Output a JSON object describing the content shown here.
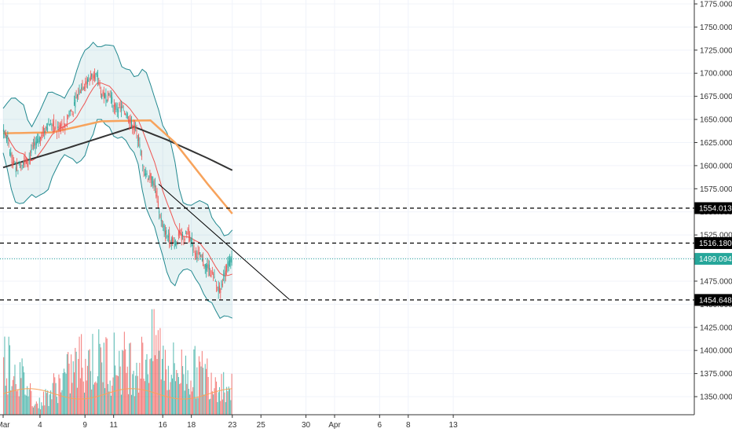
{
  "chart_data": {
    "type": "candlestick",
    "instrument_quote_unit": "price",
    "ylim": [
      1337,
      1780
    ],
    "y_ticks": [
      "1350.000",
      "1375.000",
      "1400.000",
      "1425.000",
      "1450.000",
      "1475.000",
      "1500.000",
      "1525.000",
      "1550.000",
      "1575.000",
      "1600.000",
      "1625.000",
      "1650.000",
      "1675.000",
      "1700.000",
      "1725.000",
      "1750.000",
      "1775.000"
    ],
    "x_ticks": [
      "Mar",
      "4",
      "9",
      "11",
      "16",
      "18",
      "23",
      "25",
      "30",
      "Apr",
      "6",
      "8",
      "13"
    ],
    "x_tick_index": [
      0,
      9,
      20,
      27,
      39,
      46,
      56,
      63,
      74,
      81,
      92,
      99,
      110
    ],
    "grid": true,
    "horizontal_levels": [
      {
        "value": 1554.013,
        "label": "1554.013",
        "style": "dashed",
        "color": "#000000"
      },
      {
        "value": 1516.18,
        "label": "1516.180",
        "style": "dashed",
        "color": "#000000"
      },
      {
        "value": 1454.648,
        "label": "1454.648",
        "style": "dashed",
        "color": "#000000"
      }
    ],
    "last_price": {
      "value": 1499.094,
      "label": "1499.094",
      "color": "#26a69a"
    },
    "trendline": {
      "from": {
        "index": 38,
        "value": 1580
      },
      "to": {
        "index": 70,
        "value": 1455
      }
    },
    "ohlc_keypoints": [
      {
        "i": 0,
        "close": 1638
      },
      {
        "i": 3,
        "close": 1600
      },
      {
        "i": 7,
        "close": 1612
      },
      {
        "i": 10,
        "close": 1642
      },
      {
        "i": 15,
        "close": 1645
      },
      {
        "i": 19,
        "close": 1685
      },
      {
        "i": 21,
        "close": 1700
      },
      {
        "i": 25,
        "close": 1675
      },
      {
        "i": 29,
        "close": 1660
      },
      {
        "i": 32,
        "close": 1645
      },
      {
        "i": 34,
        "close": 1600
      },
      {
        "i": 37,
        "close": 1580
      },
      {
        "i": 39,
        "close": 1530
      },
      {
        "i": 42,
        "close": 1520
      },
      {
        "i": 45,
        "close": 1525
      },
      {
        "i": 48,
        "close": 1500
      },
      {
        "i": 51,
        "close": 1480
      },
      {
        "i": 53,
        "close": 1470
      },
      {
        "i": 55,
        "close": 1500
      },
      {
        "i": 56,
        "close": 1499
      }
    ],
    "volume_keypoints": [
      {
        "i": 1,
        "v": 0.75
      },
      {
        "i": 8,
        "v": 0.15
      },
      {
        "i": 19,
        "v": 0.75
      },
      {
        "i": 33,
        "v": 0.7
      },
      {
        "i": 37,
        "v": 0.95
      },
      {
        "i": 40,
        "v": 0.65
      },
      {
        "i": 43,
        "v": 0.6
      },
      {
        "i": 50,
        "v": 0.55
      },
      {
        "i": 55,
        "v": 0.35
      }
    ],
    "series": [
      {
        "name": "",
        "kind": "sma_long",
        "color": "#333333",
        "keypoints": [
          {
            "i": 0,
            "v": 1598
          },
          {
            "i": 15,
            "v": 1618
          },
          {
            "i": 32,
            "v": 1642
          },
          {
            "i": 40,
            "v": 1628
          },
          {
            "i": 50,
            "v": 1608
          },
          {
            "i": 56,
            "v": 1595
          }
        ]
      },
      {
        "name": "",
        "kind": "sma_mid",
        "color": "#f7a35c",
        "keypoints": [
          {
            "i": 0,
            "v": 1635
          },
          {
            "i": 12,
            "v": 1636
          },
          {
            "i": 24,
            "v": 1648
          },
          {
            "i": 36,
            "v": 1649
          },
          {
            "i": 42,
            "v": 1625
          },
          {
            "i": 50,
            "v": 1580
          },
          {
            "i": 56,
            "v": 1548
          }
        ]
      },
      {
        "name": "",
        "kind": "bollinger",
        "color": "#21888f"
      }
    ],
    "volume_ma_color": "#f7a35c"
  }
}
